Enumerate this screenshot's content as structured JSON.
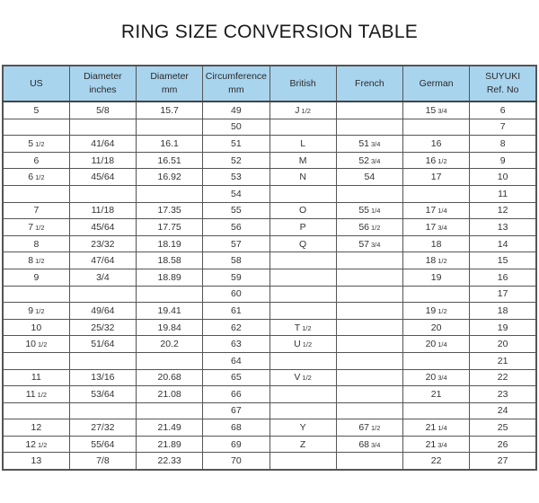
{
  "title": "RING SIZE CONVERSION TABLE",
  "header_color": "#a9d4ee",
  "columns": [
    [
      "US"
    ],
    [
      "Diameter",
      "inches"
    ],
    [
      "Diameter",
      "mm"
    ],
    [
      "Circumference",
      "mm"
    ],
    [
      "British"
    ],
    [
      "French"
    ],
    [
      "German"
    ],
    [
      "SUYUKI",
      "Ref. No"
    ]
  ],
  "rows": [
    [
      "5",
      "5/8",
      "15.7",
      "49",
      "J 1/2",
      "",
      "15 3/4",
      "6"
    ],
    [
      "",
      "",
      "",
      "50",
      "",
      "",
      "",
      "7"
    ],
    [
      "5 1/2",
      "41/64",
      "16.1",
      "51",
      "L",
      "51 3/4",
      "16",
      "8"
    ],
    [
      "6",
      "11/18",
      "16.51",
      "52",
      "M",
      "52 3/4",
      "16 1/2",
      "9"
    ],
    [
      "6 1/2",
      "45/64",
      "16.92",
      "53",
      "N",
      "54",
      "17",
      "10"
    ],
    [
      "",
      "",
      "",
      "54",
      "",
      "",
      "",
      "11"
    ],
    [
      "7",
      "11/18",
      "17.35",
      "55",
      "O",
      "55 1/4",
      "17 1/4",
      "12"
    ],
    [
      "7 1/2",
      "45/64",
      "17.75",
      "56",
      "P",
      "56 1/2",
      "17 3/4",
      "13"
    ],
    [
      "8",
      "23/32",
      "18.19",
      "57",
      "Q",
      "57 3/4",
      "18",
      "14"
    ],
    [
      "8 1/2",
      "47/64",
      "18.58",
      "58",
      "",
      "",
      "18 1/2",
      "15"
    ],
    [
      "9",
      "3/4",
      "18.89",
      "59",
      "",
      "",
      "19",
      "16"
    ],
    [
      "",
      "",
      "",
      "60",
      "",
      "",
      "",
      "17"
    ],
    [
      "9 1/2",
      "49/64",
      "19.41",
      "61",
      "",
      "",
      "19 1/2",
      "18"
    ],
    [
      "10",
      "25/32",
      "19.84",
      "62",
      "T 1/2",
      "",
      "20",
      "19"
    ],
    [
      "10 1/2",
      "51/64",
      "20.2",
      "63",
      "U 1/2",
      "",
      "20 1/4",
      "20"
    ],
    [
      "",
      "",
      "",
      "64",
      "",
      "",
      "",
      "21"
    ],
    [
      "11",
      "13/16",
      "20.68",
      "65",
      "V 1/2",
      "",
      "20 3/4",
      "22"
    ],
    [
      "11 1/2",
      "53/64",
      "21.08",
      "66",
      "",
      "",
      "21",
      "23"
    ],
    [
      "",
      "",
      "",
      "67",
      "",
      "",
      "",
      "24"
    ],
    [
      "12",
      "27/32",
      "21.49",
      "68",
      "Y",
      "67 1/2",
      "21 1/4",
      "25"
    ],
    [
      "12 1/2",
      "55/64",
      "21.89",
      "69",
      "Z",
      "68 3/4",
      "21 3/4",
      "26"
    ],
    [
      "13",
      "7/8",
      "22.33",
      "70",
      "",
      "",
      "22",
      "27"
    ]
  ]
}
